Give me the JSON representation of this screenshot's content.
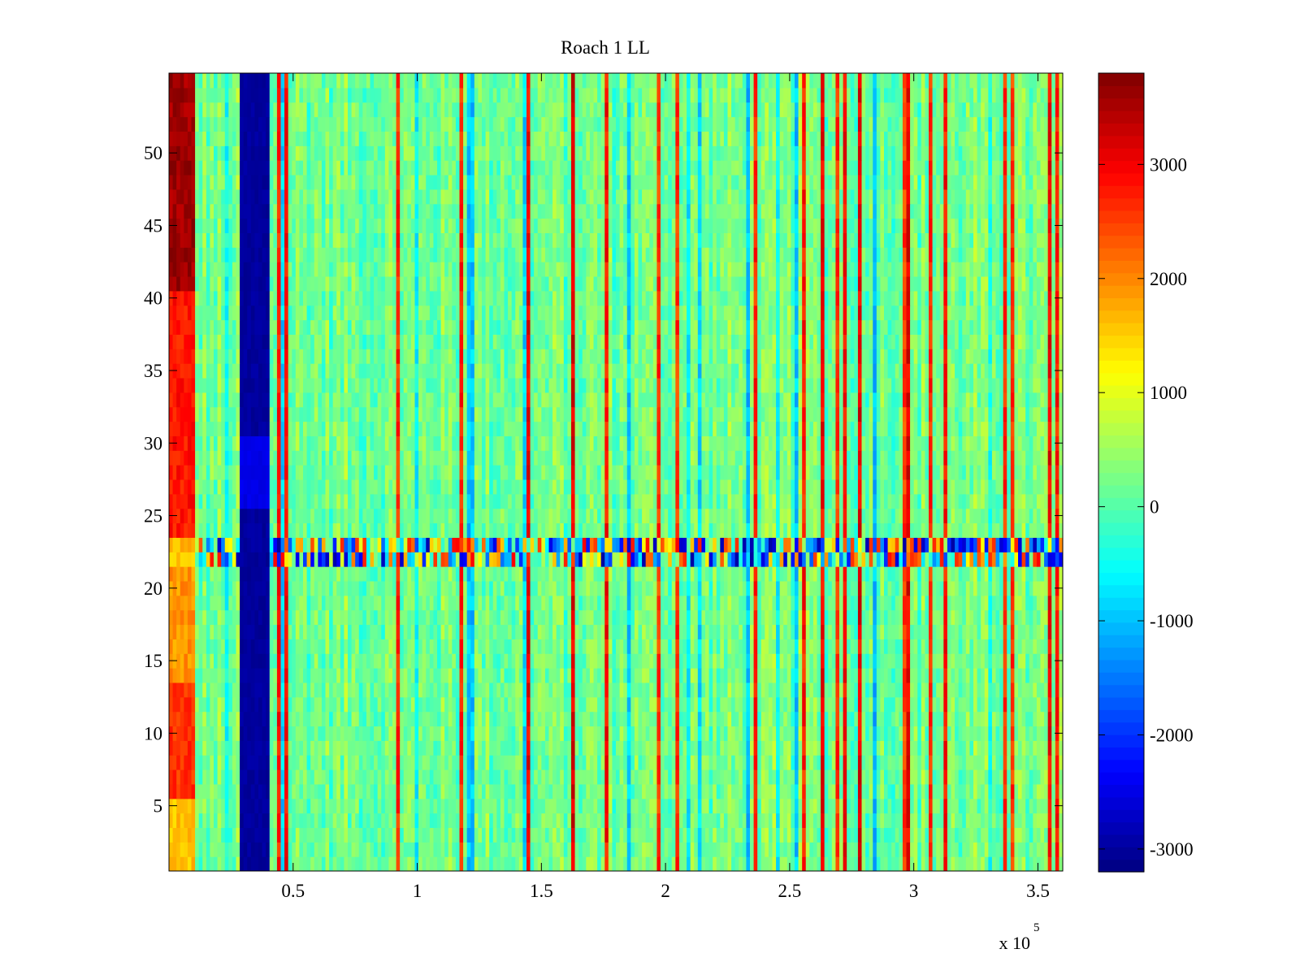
{
  "chart_data": {
    "type": "heatmap",
    "title": "Roach 1 LL",
    "xlabel": "",
    "ylabel": "",
    "x_exponent_label": "x 10",
    "x_exponent": "5",
    "xlim": [
      0,
      360000
    ],
    "ylim": [
      0.5,
      55.5
    ],
    "xticks": [
      {
        "value": 50000,
        "label": "0.5"
      },
      {
        "value": 100000,
        "label": "1"
      },
      {
        "value": 150000,
        "label": "1.5"
      },
      {
        "value": 200000,
        "label": "2"
      },
      {
        "value": 250000,
        "label": "2.5"
      },
      {
        "value": 300000,
        "label": "3"
      },
      {
        "value": 350000,
        "label": "3.5"
      }
    ],
    "yticks": [
      {
        "value": 5,
        "label": "5"
      },
      {
        "value": 10,
        "label": "10"
      },
      {
        "value": 15,
        "label": "15"
      },
      {
        "value": 20,
        "label": "20"
      },
      {
        "value": 25,
        "label": "25"
      },
      {
        "value": 30,
        "label": "30"
      },
      {
        "value": 35,
        "label": "35"
      },
      {
        "value": 40,
        "label": "40"
      },
      {
        "value": 45,
        "label": "45"
      },
      {
        "value": 50,
        "label": "50"
      }
    ],
    "colormap": "jet",
    "clim": [
      -3200,
      3800
    ],
    "colorbar_ticks": [
      {
        "value": 3000,
        "label": "3000"
      },
      {
        "value": 2000,
        "label": "2000"
      },
      {
        "value": 1000,
        "label": "1000"
      },
      {
        "value": 0,
        "label": "0"
      },
      {
        "value": -1000,
        "label": "-1000"
      },
      {
        "value": -2000,
        "label": "-2000"
      },
      {
        "value": -3000,
        "label": "-3000"
      }
    ],
    "rows": 55,
    "features": [
      {
        "name": "left-edge-high-band",
        "x_range": [
          0,
          10000
        ],
        "value_by_row": [
          [
            1,
            5,
            1600
          ],
          [
            6,
            13,
            2600
          ],
          [
            14,
            21,
            1900
          ],
          [
            22,
            23,
            1600
          ],
          [
            24,
            40,
            2800
          ],
          [
            41,
            55,
            3600
          ]
        ]
      },
      {
        "name": "low-value-column",
        "x_range": [
          29000,
          40000
        ],
        "value": -3000
      },
      {
        "name": "noisy-row-band",
        "y_range": [
          21.5,
          23.5
        ],
        "amplitude": 3000
      },
      {
        "name": "background",
        "value": 200,
        "noise": 700
      }
    ]
  }
}
